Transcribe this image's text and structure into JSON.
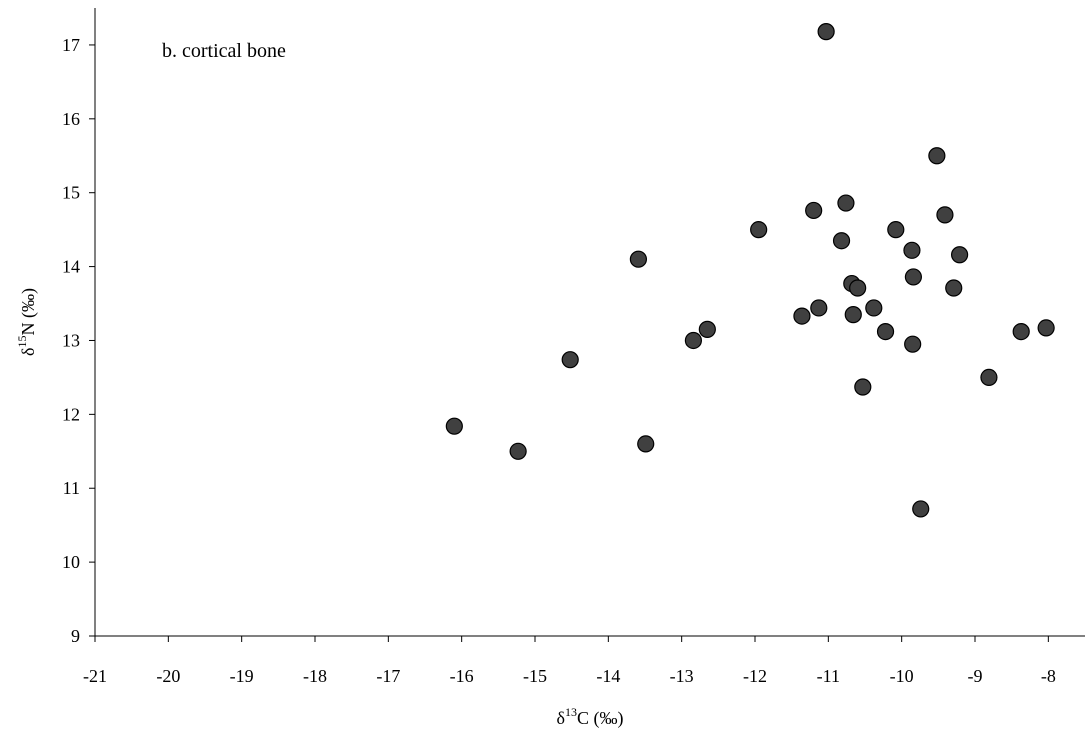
{
  "chart_data": {
    "type": "scatter",
    "title": "",
    "annotation": "b. cortical bone",
    "xlabel": {
      "prefix": "δ",
      "superscript": "13",
      "suffix": "C (‰)"
    },
    "ylabel": {
      "prefix": "δ",
      "superscript": "15",
      "suffix": "N (‰)"
    },
    "xlim": [
      -21,
      -7.5
    ],
    "ylim": [
      9,
      17.5
    ],
    "x_ticks": [
      "-21",
      "-20",
      "-19",
      "-18",
      "-17",
      "-16",
      "-15",
      "-14",
      "-13",
      "-12",
      "-11",
      "-10",
      "-9",
      "-8"
    ],
    "y_ticks": [
      "9",
      "10",
      "11",
      "12",
      "13",
      "14",
      "15",
      "16",
      "17"
    ],
    "grid": false,
    "marker_color": "#404040",
    "points": [
      {
        "x": -11.03,
        "y": 17.18
      },
      {
        "x": -9.52,
        "y": 15.5
      },
      {
        "x": -10.76,
        "y": 14.86
      },
      {
        "x": -11.2,
        "y": 14.76
      },
      {
        "x": -9.41,
        "y": 14.7
      },
      {
        "x": -11.95,
        "y": 14.5
      },
      {
        "x": -10.08,
        "y": 14.5
      },
      {
        "x": -10.82,
        "y": 14.35
      },
      {
        "x": -9.86,
        "y": 14.22
      },
      {
        "x": -9.21,
        "y": 14.16
      },
      {
        "x": -13.59,
        "y": 14.1
      },
      {
        "x": -9.84,
        "y": 13.86
      },
      {
        "x": -10.68,
        "y": 13.77
      },
      {
        "x": -10.6,
        "y": 13.71
      },
      {
        "x": -9.29,
        "y": 13.71
      },
      {
        "x": -11.13,
        "y": 13.44
      },
      {
        "x": -10.38,
        "y": 13.44
      },
      {
        "x": -11.36,
        "y": 13.33
      },
      {
        "x": -10.66,
        "y": 13.35
      },
      {
        "x": -12.65,
        "y": 13.15
      },
      {
        "x": -10.22,
        "y": 13.12
      },
      {
        "x": -8.37,
        "y": 13.12
      },
      {
        "x": -8.03,
        "y": 13.17
      },
      {
        "x": -12.84,
        "y": 13.0
      },
      {
        "x": -9.85,
        "y": 12.95
      },
      {
        "x": -14.52,
        "y": 12.74
      },
      {
        "x": -8.81,
        "y": 12.5
      },
      {
        "x": -10.53,
        "y": 12.37
      },
      {
        "x": -16.1,
        "y": 11.84
      },
      {
        "x": -13.49,
        "y": 11.6
      },
      {
        "x": -15.23,
        "y": 11.5
      },
      {
        "x": -9.74,
        "y": 10.72
      }
    ]
  }
}
